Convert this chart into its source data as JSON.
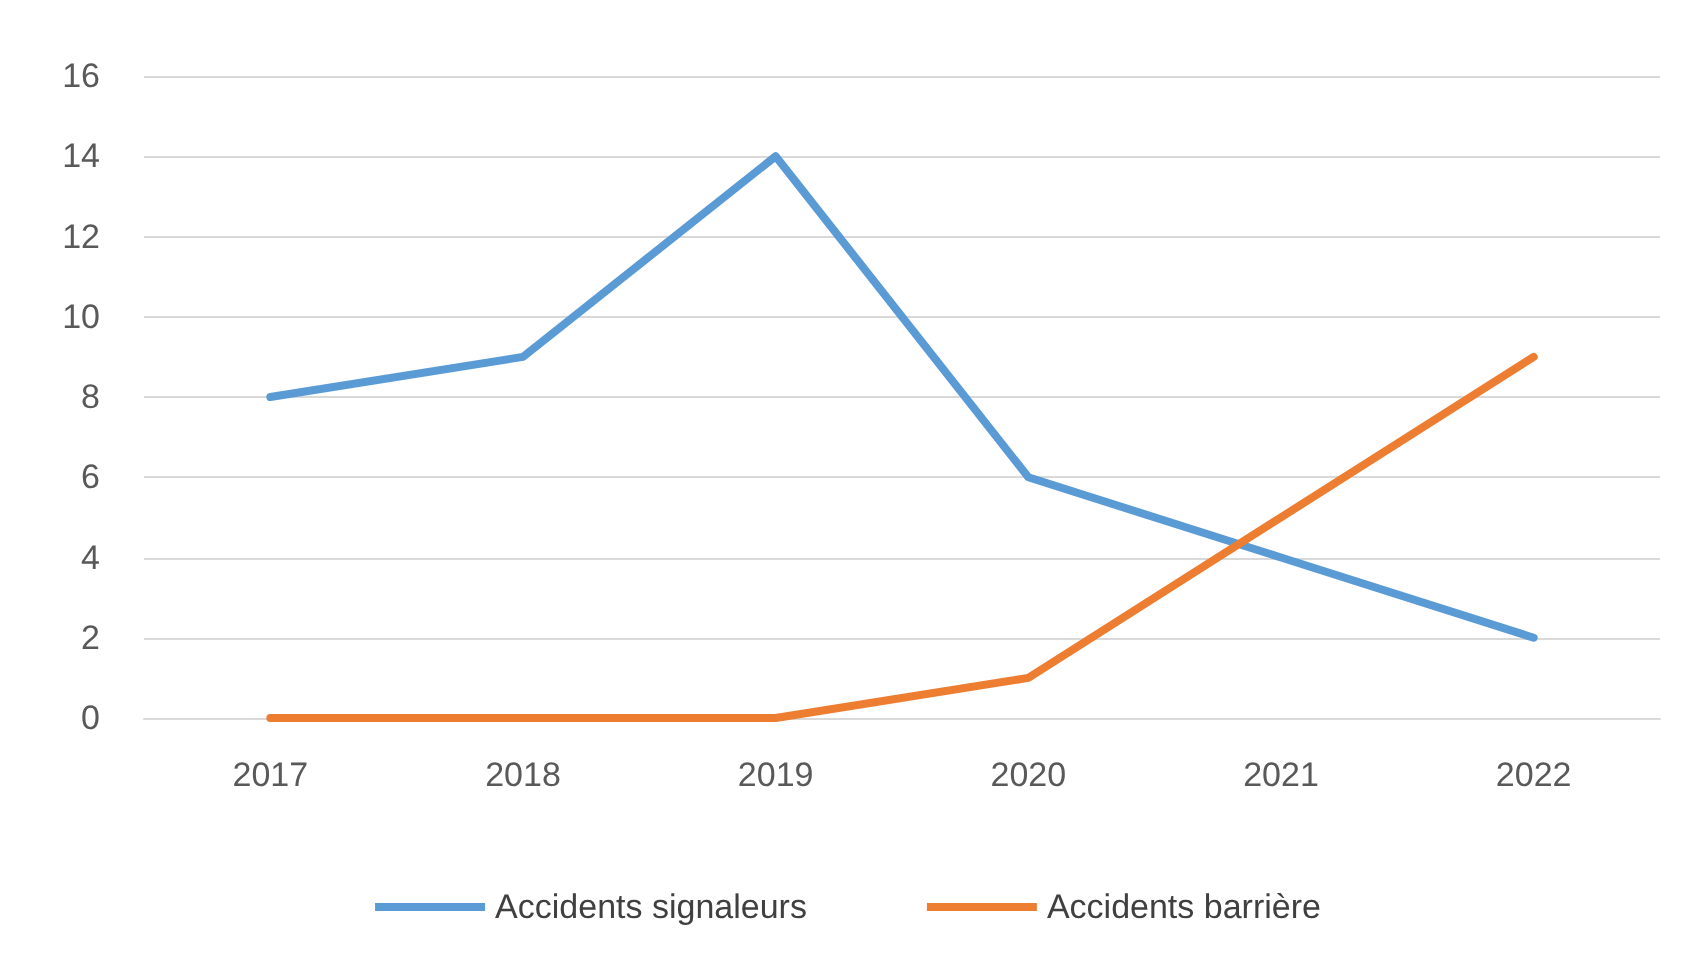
{
  "chart_data": {
    "type": "line",
    "categories": [
      "2017",
      "2018",
      "2019",
      "2020",
      "2021",
      "2022"
    ],
    "series": [
      {
        "name": "Accidents signaleurs",
        "color": "#5b9bd5",
        "values": [
          8,
          9,
          14,
          6,
          4,
          2
        ]
      },
      {
        "name": "Accidents barrière",
        "color": "#ed7d31",
        "values": [
          0,
          0,
          0,
          1,
          5,
          9
        ]
      }
    ],
    "ylim": [
      0,
      16
    ],
    "yticks": [
      0,
      2,
      4,
      6,
      8,
      10,
      12,
      14,
      16
    ],
    "grid": "y",
    "legend": "bottom",
    "marker": "none",
    "line_style": "solid"
  }
}
